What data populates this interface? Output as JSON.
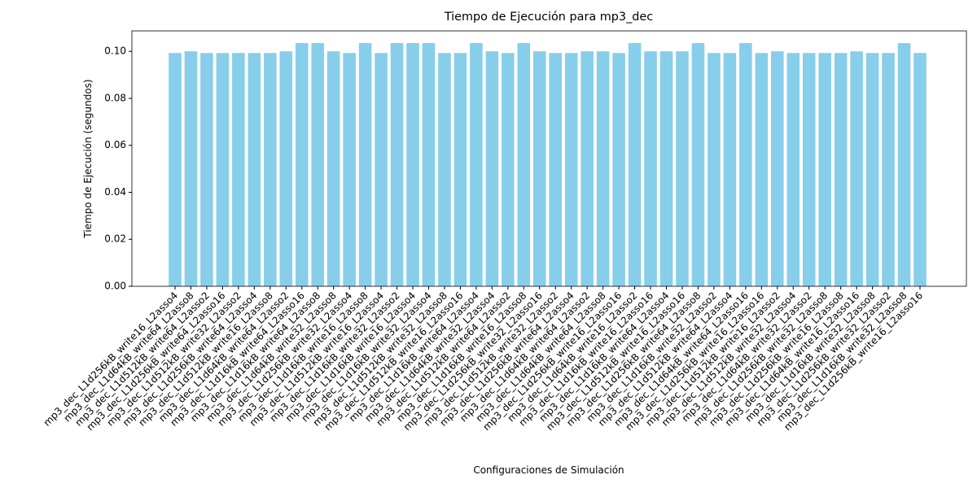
{
  "chart_data": {
    "type": "bar",
    "title": "Tiempo de Ejecución para mp3_dec",
    "xlabel": "Configuraciones de Simulación",
    "ylabel": "Tiempo de Ejecución (segundos)",
    "color": "#87ceeb",
    "categories": [
      "mp3_dec_L1d256kB_write16_L2asso4",
      "mp3_dec_L1d64kB_write64_L2asso8",
      "mp3_dec_L1d512kB_write64_L2asso2",
      "mp3_dec_L1d256kB_write64_L2asso16",
      "mp3_dec_L1d512kB_write32_L2asso2",
      "mp3_dec_L1d256kB_write64_L2asso4",
      "mp3_dec_L1d512kB_write16_L2asso8",
      "mp3_dec_L1d64kB_write64_L2asso2",
      "mp3_dec_L1d16kB_write64_L2asso16",
      "mp3_dec_L1d16kB_write64_L2asso8",
      "mp3_dec_L1d64kB_write32_L2asso8",
      "mp3_dec_L1d256kB_write32_L2asso4",
      "mp3_dec_L1d16kB_write16_L2asso8",
      "mp3_dec_L1d512kB_write16_L2asso4",
      "mp3_dec_L1d16kB_write32_L2asso2",
      "mp3_dec_L1d16kB_write16_L2asso4",
      "mp3_dec_L1d16kB_write32_L2asso4",
      "mp3_dec_L1d512kB_write32_L2asso8",
      "mp3_dec_L1d512kB_write16_L2asso16",
      "mp3_dec_L1d16kB_write64_L2asso4",
      "mp3_dec_L1d64kB_write32_L2asso4",
      "mp3_dec_L1d512kB_write64_L2asso2",
      "mp3_dec_L1d16kB_write16_L2asso8",
      "mp3_dec_L1d256kB_write32_L2asso16",
      "mp3_dec_L1d512kB_write32_L2asso2",
      "mp3_dec_L1d256kB_write64_L2asso4",
      "mp3_dec_L1d64kB_write64_L2asso2",
      "mp3_dec_L1d64kB_write64_L2asso8",
      "mp3_dec_L1d256kB_write16_L2asso16",
      "mp3_dec_L1d64kB_write16_L2asso2",
      "mp3_dec_L1d16kB_write16_L2asso16",
      "mp3_dec_L1d16kB_write64_L2asso4",
      "mp3_dec_L1d512kB_write16_L2asso16",
      "mp3_dec_L1d256kB_write64_L2asso8",
      "mp3_dec_L1d16kB_write32_L2asso2",
      "mp3_dec_L1d512kB_write64_L2asso4",
      "mp3_dec_L1d64kB_write64_L2asso16",
      "mp3_dec_L1d256kB_write16_L2asso16",
      "mp3_dec_L1d512kB_write16_L2asso2",
      "mp3_dec_L1d512kB_write32_L2asso4",
      "mp3_dec_L1d64kB_write32_L2asso2",
      "mp3_dec_L1d256kB_write32_L2asso8",
      "mp3_dec_L1d256kB_write16_L2asso8",
      "mp3_dec_L1d64kB_write16_L2asso16",
      "mp3_dec_L1d16kB_write32_L2asso8",
      "mp3_dec_L1d256kB_write32_L2asso2",
      "mp3_dec_L1d16kB_write32_L2asso8",
      "mp3_dec_L1d256kB_write16_L2asso16"
    ],
    "values": [
      0.0993,
      0.1,
      0.0993,
      0.0993,
      0.0993,
      0.0993,
      0.0993,
      0.1,
      0.1035,
      0.1035,
      0.1,
      0.0993,
      0.1035,
      0.0993,
      0.1035,
      0.1035,
      0.1035,
      0.0993,
      0.0993,
      0.1035,
      0.1,
      0.0993,
      0.1035,
      0.1,
      0.0993,
      0.0993,
      0.1,
      0.1,
      0.0993,
      0.1035,
      0.1,
      0.1,
      0.1,
      0.1035,
      0.0993,
      0.0993,
      0.1035,
      0.0993,
      0.1,
      0.0993,
      0.0993,
      0.0993,
      0.0993,
      0.1,
      0.0993,
      0.0993,
      0.1035,
      0.0993
    ],
    "ylim": [
      0,
      0.1087
    ],
    "yticks": [
      {
        "value": 0,
        "label": "0.00"
      },
      {
        "value": 0.02,
        "label": "0.02"
      },
      {
        "value": 0.04,
        "label": "0.04"
      },
      {
        "value": 0.06,
        "label": "0.06"
      },
      {
        "value": 0.08,
        "label": "0.08"
      },
      {
        "value": 0.1,
        "label": "0.10"
      }
    ],
    "grid": false
  }
}
